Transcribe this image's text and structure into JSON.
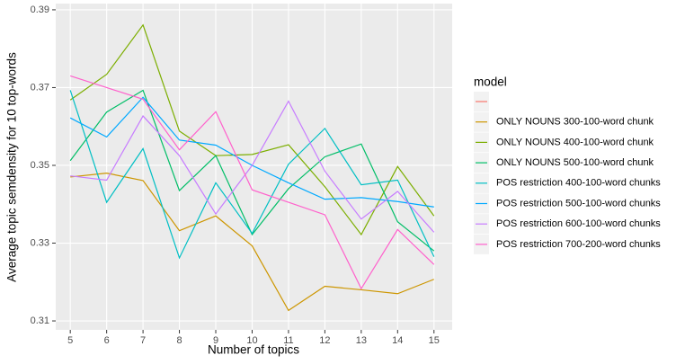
{
  "chart_data": {
    "type": "line",
    "x_label": "Number of topics",
    "y_label": "Average topic semdensity for 10 top-words",
    "legend_title": "model",
    "x": [
      5,
      6,
      7,
      8,
      9,
      10,
      11,
      12,
      13,
      14,
      15
    ],
    "xlim": [
      4.6,
      15.5
    ],
    "xticks": [
      5,
      6,
      7,
      8,
      9,
      10,
      11,
      12,
      13,
      14,
      15
    ],
    "ylim": [
      0.3077,
      0.3916
    ],
    "yticks": [
      0.31,
      0.33,
      0.35,
      0.37,
      0.39
    ],
    "grid": true,
    "legend": "right",
    "series": [
      {
        "name": null,
        "color": "#F8766D",
        "values": [
          null,
          null,
          null,
          null,
          null,
          null,
          null,
          null,
          null,
          null,
          null
        ]
      },
      {
        "name": "ONLY NOUNS 300-100-word chunk",
        "color": "#CD9600",
        "values": [
          0.347,
          0.348,
          0.3461,
          0.3332,
          0.337,
          0.3293,
          0.3127,
          0.3189,
          0.318,
          0.317,
          0.3207
        ]
      },
      {
        "name": "ONLY NOUNS 400-100-word chunk",
        "color": "#7CAE00",
        "values": [
          0.3668,
          0.3734,
          0.3861,
          0.3588,
          0.3525,
          0.3528,
          0.3553,
          0.3445,
          0.3322,
          0.3497,
          0.337
        ]
      },
      {
        "name": "ONLY NOUNS 500-100-word chunk",
        "color": "#00BE67",
        "values": [
          0.3512,
          0.3637,
          0.3693,
          0.3435,
          0.3525,
          0.3322,
          0.344,
          0.3522,
          0.3555,
          0.3355,
          0.328
        ]
      },
      {
        "name": "POS restriction 400-100-word chunks",
        "color": "#00BFC4",
        "values": [
          0.3693,
          0.3405,
          0.3543,
          0.3262,
          0.3455,
          0.3325,
          0.3503,
          0.3595,
          0.345,
          0.3462,
          0.3265
        ]
      },
      {
        "name": "POS restriction 500-100-word chunks",
        "color": "#00A9FF",
        "values": [
          0.3622,
          0.3573,
          0.3675,
          0.3565,
          0.3552,
          0.35,
          0.3455,
          0.3413,
          0.3417,
          0.3407,
          0.3393
        ]
      },
      {
        "name": "POS restriction 600-100-word chunks",
        "color": "#C77CFF",
        "values": [
          0.3473,
          0.3462,
          0.3627,
          0.3525,
          0.3375,
          0.35,
          0.3665,
          0.3485,
          0.3362,
          0.3433,
          0.3328
        ]
      },
      {
        "name": "POS restriction 700-200-word chunks",
        "color": "#FF61CC",
        "values": [
          0.373,
          0.37,
          0.367,
          0.354,
          0.3638,
          0.3437,
          0.3405,
          0.3373,
          0.3183,
          0.3335,
          0.3245
        ]
      }
    ]
  }
}
